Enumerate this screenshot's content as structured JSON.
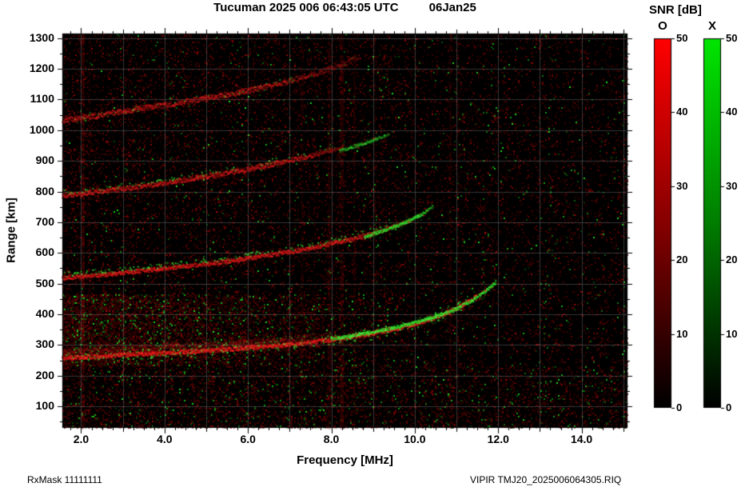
{
  "header": {
    "title_main": "Tucuman 2025 006 06:43:05 UTC",
    "title_date": "06Jan25"
  },
  "footer": {
    "rxmask": "RxMask 11111111",
    "filename": "VIPIR  TMJ20_2025006064305.RIQ"
  },
  "colorbar": {
    "title": "SNR [dB]",
    "tick_labels": [
      "0",
      "10",
      "20",
      "30",
      "40",
      "50"
    ],
    "bars": [
      {
        "label": "O",
        "stops": [
          [
            0,
            "#000000"
          ],
          [
            0.5,
            "#860000"
          ],
          [
            1,
            "#ff0000"
          ]
        ]
      },
      {
        "label": "X",
        "stops": [
          [
            0,
            "#000000"
          ],
          [
            0.5,
            "#007d00"
          ],
          [
            1,
            "#00e600"
          ]
        ]
      }
    ]
  },
  "chart_data": {
    "type": "heatmap",
    "title": "Tucuman 2025 006 06:43:05 UTC 06Jan25",
    "xlabel": "Frequency [MHz]",
    "ylabel": "Range [km]",
    "xlim": [
      1.55,
      15.1
    ],
    "ylim": [
      30,
      1315
    ],
    "snr_range_db": [
      0,
      50
    ],
    "x_ticks": [
      {
        "v": 2,
        "label": "2.0"
      },
      {
        "v": 4,
        "label": "4.0"
      },
      {
        "v": 6,
        "label": "6.0"
      },
      {
        "v": 8,
        "label": "8.0"
      },
      {
        "v": 10,
        "label": "10.0"
      },
      {
        "v": 12,
        "label": "12.0"
      },
      {
        "v": 14,
        "label": "14.0"
      }
    ],
    "y_ticks": [
      {
        "v": 100,
        "label": "100"
      },
      {
        "v": 200,
        "label": "200"
      },
      {
        "v": 300,
        "label": "300"
      },
      {
        "v": 400,
        "label": "400"
      },
      {
        "v": 500,
        "label": "500"
      },
      {
        "v": 600,
        "label": "600"
      },
      {
        "v": 700,
        "label": "700"
      },
      {
        "v": 800,
        "label": "800"
      },
      {
        "v": 900,
        "label": "900"
      },
      {
        "v": 1000,
        "label": "1000"
      },
      {
        "v": 1100,
        "label": "1100"
      },
      {
        "v": 1200,
        "label": "1200"
      },
      {
        "v": 1300,
        "label": "1300"
      }
    ],
    "grid": {
      "x_step": 1,
      "y_step": 100,
      "color": "#999999",
      "alpha": 0.35
    },
    "traces": [
      {
        "name": "1F-O",
        "mode": "O",
        "points": [
          [
            1.55,
            257
          ],
          [
            2.5,
            263
          ],
          [
            3.5,
            270
          ],
          [
            4.5,
            277
          ],
          [
            5.5,
            285
          ],
          [
            6.5,
            295
          ],
          [
            7.5,
            308
          ],
          [
            8.5,
            326
          ],
          [
            9.3,
            345
          ],
          [
            10.0,
            368
          ],
          [
            10.6,
            393
          ],
          [
            11.0,
            418
          ],
          [
            11.3,
            442
          ],
          [
            11.5,
            462
          ]
        ],
        "fuzz": 5,
        "alpha": 0.95,
        "fade_from": null,
        "end_alpha": null,
        "alt_density": 0.3,
        "alt_offset": [
          -7,
          5
        ]
      },
      {
        "name": "1F-band",
        "mode": "O",
        "points": [
          [
            1.55,
            272
          ],
          [
            3.0,
            281
          ],
          [
            5.0,
            295
          ],
          [
            6.5,
            308
          ],
          [
            8.0,
            330
          ]
        ],
        "fuzz": 10,
        "alpha": 0.35,
        "fade_from": 6.5,
        "end_alpha": 0.15,
        "alt_density": 0.22,
        "alt_offset": [
          -8,
          8
        ]
      },
      {
        "name": "1F-X",
        "mode": "X",
        "points": [
          [
            8.0,
            318
          ],
          [
            9.0,
            342
          ],
          [
            9.8,
            364
          ],
          [
            10.5,
            392
          ],
          [
            11.0,
            417
          ],
          [
            11.4,
            447
          ],
          [
            11.75,
            480
          ],
          [
            11.95,
            505
          ]
        ],
        "fuzz": 4,
        "alpha": 0.9,
        "fade_from": null,
        "end_alpha": null,
        "alt_density": 0.18,
        "alt_offset": [
          -4,
          4
        ]
      },
      {
        "name": "2F-O",
        "mode": "O",
        "points": [
          [
            1.55,
            518
          ],
          [
            2.5,
            528
          ],
          [
            3.5,
            542
          ],
          [
            4.5,
            556
          ],
          [
            5.5,
            572
          ],
          [
            6.5,
            592
          ],
          [
            7.5,
            615
          ],
          [
            8.5,
            645
          ],
          [
            9.2,
            672
          ],
          [
            9.8,
            700
          ]
        ],
        "fuzz": 5,
        "alpha": 0.8,
        "fade_from": 8.2,
        "end_alpha": 0.25,
        "alt_density": 0.3,
        "alt_offset": [
          -8,
          -2
        ]
      },
      {
        "name": "2F-X",
        "mode": "X",
        "points": [
          [
            8.8,
            652
          ],
          [
            9.6,
            688
          ],
          [
            10.1,
            720
          ],
          [
            10.45,
            752
          ]
        ],
        "fuzz": 4,
        "alpha": 0.8,
        "fade_from": 10.1,
        "end_alpha": 0.35,
        "alt_density": 0.1,
        "alt_offset": [
          -3,
          3
        ]
      },
      {
        "name": "3F-O",
        "mode": "O",
        "points": [
          [
            1.55,
            786
          ],
          [
            2.5,
            800
          ],
          [
            3.5,
            818
          ],
          [
            4.5,
            838
          ],
          [
            5.5,
            860
          ],
          [
            6.5,
            886
          ],
          [
            7.5,
            916
          ],
          [
            8.3,
            945
          ]
        ],
        "fuzz": 6,
        "alpha": 0.7,
        "fade_from": 7.0,
        "end_alpha": 0.25,
        "alt_density": 0.25,
        "alt_offset": [
          -8,
          -2
        ]
      },
      {
        "name": "3F-X",
        "mode": "X",
        "points": [
          [
            8.2,
            932
          ],
          [
            8.9,
            962
          ],
          [
            9.4,
            988
          ]
        ],
        "fuzz": 4,
        "alpha": 0.5,
        "fade_from": 9.0,
        "end_alpha": 0.2,
        "alt_density": 0.1,
        "alt_offset": [
          -3,
          3
        ]
      },
      {
        "name": "4F-O",
        "mode": "O",
        "points": [
          [
            1.55,
            1032
          ],
          [
            2.5,
            1050
          ],
          [
            3.5,
            1072
          ],
          [
            4.5,
            1092
          ],
          [
            5.5,
            1115
          ],
          [
            6.5,
            1142
          ],
          [
            7.5,
            1178
          ],
          [
            8.3,
            1215
          ],
          [
            8.7,
            1240
          ]
        ],
        "fuzz": 7,
        "alpha": 0.6,
        "fade_from": 6.2,
        "end_alpha": 0.2,
        "alt_density": 0.12,
        "alt_offset": [
          -6,
          2
        ]
      }
    ],
    "rfi_bands": [
      {
        "f": 2.05,
        "w": 3,
        "alpha": 0.5,
        "color": "#a00000"
      },
      {
        "f": 2.2,
        "w": 2,
        "alpha": 0.25,
        "color": "#7a0000"
      },
      {
        "f": 3.15,
        "w": 2,
        "alpha": 0.15,
        "color": "#7a0000"
      },
      {
        "f": 5.1,
        "w": 2,
        "alpha": 0.12,
        "color": "#7a0000"
      },
      {
        "f": 6.15,
        "w": 2,
        "alpha": 0.15,
        "color": "#7a0000"
      },
      {
        "f": 7.3,
        "w": 3,
        "alpha": 0.25,
        "color": "#7a0000"
      },
      {
        "f": 7.6,
        "w": 2,
        "alpha": 0.2,
        "color": "#7a0000"
      },
      {
        "f": 7.95,
        "w": 4,
        "alpha": 0.33,
        "color": "#6a0000"
      },
      {
        "f": 8.25,
        "w": 5,
        "alpha": 0.4,
        "color": "#7a0000"
      },
      {
        "f": 8.55,
        "w": 3,
        "alpha": 0.3,
        "color": "#6a0000"
      },
      {
        "f": 9.05,
        "w": 2,
        "alpha": 0.15,
        "color": "#7a0000"
      },
      {
        "f": 10.85,
        "w": 3,
        "alpha": 0.3,
        "color": "#7a0000"
      },
      {
        "f": 11.05,
        "w": 2,
        "alpha": 0.2,
        "color": "#7a0000"
      },
      {
        "f": 12.2,
        "w": 2,
        "alpha": 0.12,
        "color": "#7a0000"
      },
      {
        "f": 13.4,
        "w": 2,
        "alpha": 0.1,
        "color": "#7a0000"
      }
    ],
    "noise": {
      "seed": 20250106,
      "cell": 2,
      "base_red": 0.13,
      "left_bias": 0.7,
      "base_green": 0.012,
      "dense_region": {
        "f": [
          1.55,
          10.0
        ],
        "r": [
          235,
          470
        ],
        "extra_red": 0.5,
        "extra_green": 0.11
      },
      "low_band": {
        "r": [
          30,
          235
        ],
        "extra_red": 0.1,
        "extra_green": 0.02
      },
      "red_palette": [
        "#3c0000",
        "#560000",
        "#730303",
        "#930707",
        "#b80b0b"
      ],
      "green_palette": [
        "#0a4a0a",
        "#107a10",
        "#18b018",
        "#24dd24"
      ]
    }
  }
}
